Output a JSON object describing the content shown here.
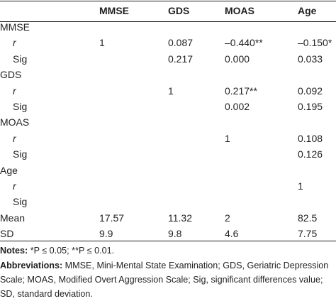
{
  "table": {
    "columns": [
      "MMSE",
      "GDS",
      "MOAS",
      "Age"
    ],
    "groups": [
      {
        "label": "MMSE",
        "rows": [
          {
            "label": "r",
            "cells": [
              "1",
              "0.087",
              "–0.440**",
              "–0.150*"
            ]
          },
          {
            "label": "Sig",
            "cells": [
              null,
              "0.217",
              "0.000",
              "0.033"
            ]
          }
        ]
      },
      {
        "label": "GDS",
        "rows": [
          {
            "label": "r",
            "cells": [
              null,
              "1",
              "0.217**",
              "0.092"
            ]
          },
          {
            "label": "Sig",
            "cells": [
              null,
              null,
              "0.002",
              "0.195"
            ]
          }
        ]
      },
      {
        "label": "MOAS",
        "rows": [
          {
            "label": "r",
            "cells": [
              null,
              null,
              "1",
              "0.108"
            ]
          },
          {
            "label": "Sig",
            "cells": [
              null,
              null,
              null,
              "0.126"
            ]
          }
        ]
      },
      {
        "label": "Age",
        "rows": [
          {
            "label": "r",
            "cells": [
              null,
              null,
              null,
              "1"
            ]
          },
          {
            "label": "Sig",
            "cells": [
              null,
              null,
              null,
              null
            ]
          }
        ]
      }
    ],
    "summary": [
      {
        "label": "Mean",
        "cells": [
          "17.57",
          "11.32",
          "2",
          "82.5"
        ]
      },
      {
        "label": "SD",
        "cells": [
          "9.9",
          "9.8",
          "4.6",
          "7.75"
        ]
      }
    ]
  },
  "notes": {
    "label": "Notes:",
    "text": "*P ≤ 0.05; **P ≤ 0.01."
  },
  "abbreviations": {
    "label": "Abbreviations:",
    "text": "MMSE, Mini-Mental State Examination; GDS, Geriatric Depression Scale; MOAS, Modified Overt Aggression Scale; Sig, significant differences value; SD, standard deviation."
  }
}
